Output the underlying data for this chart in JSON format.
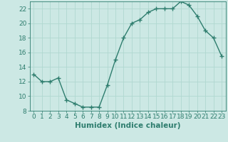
{
  "xlabel": "Humidex (Indice chaleur)",
  "x": [
    0,
    1,
    2,
    3,
    4,
    5,
    6,
    7,
    8,
    9,
    10,
    11,
    12,
    13,
    14,
    15,
    16,
    17,
    18,
    19,
    20,
    21,
    22,
    23
  ],
  "y": [
    13,
    12,
    12,
    12.5,
    9.5,
    9,
    8.5,
    8.5,
    8.5,
    11.5,
    15,
    18,
    20,
    20.5,
    21.5,
    22,
    22,
    22,
    23,
    22.5,
    21,
    19,
    18,
    15.5
  ],
  "line_color": "#2e7d6e",
  "marker": "+",
  "marker_size": 4,
  "bg_color": "#cce8e4",
  "grid_color": "#b0d8d0",
  "ylim": [
    8,
    23
  ],
  "yticks": [
    8,
    10,
    12,
    14,
    16,
    18,
    20,
    22
  ],
  "xtick_labels": [
    "0",
    "1",
    "2",
    "3",
    "4",
    "5",
    "6",
    "7",
    "8",
    "9",
    "1011",
    "1213",
    "1415",
    "1617",
    "1819",
    "2021",
    "2223"
  ],
  "xlabel_fontsize": 7.5,
  "tick_fontsize": 6.5,
  "line_width": 1.0
}
